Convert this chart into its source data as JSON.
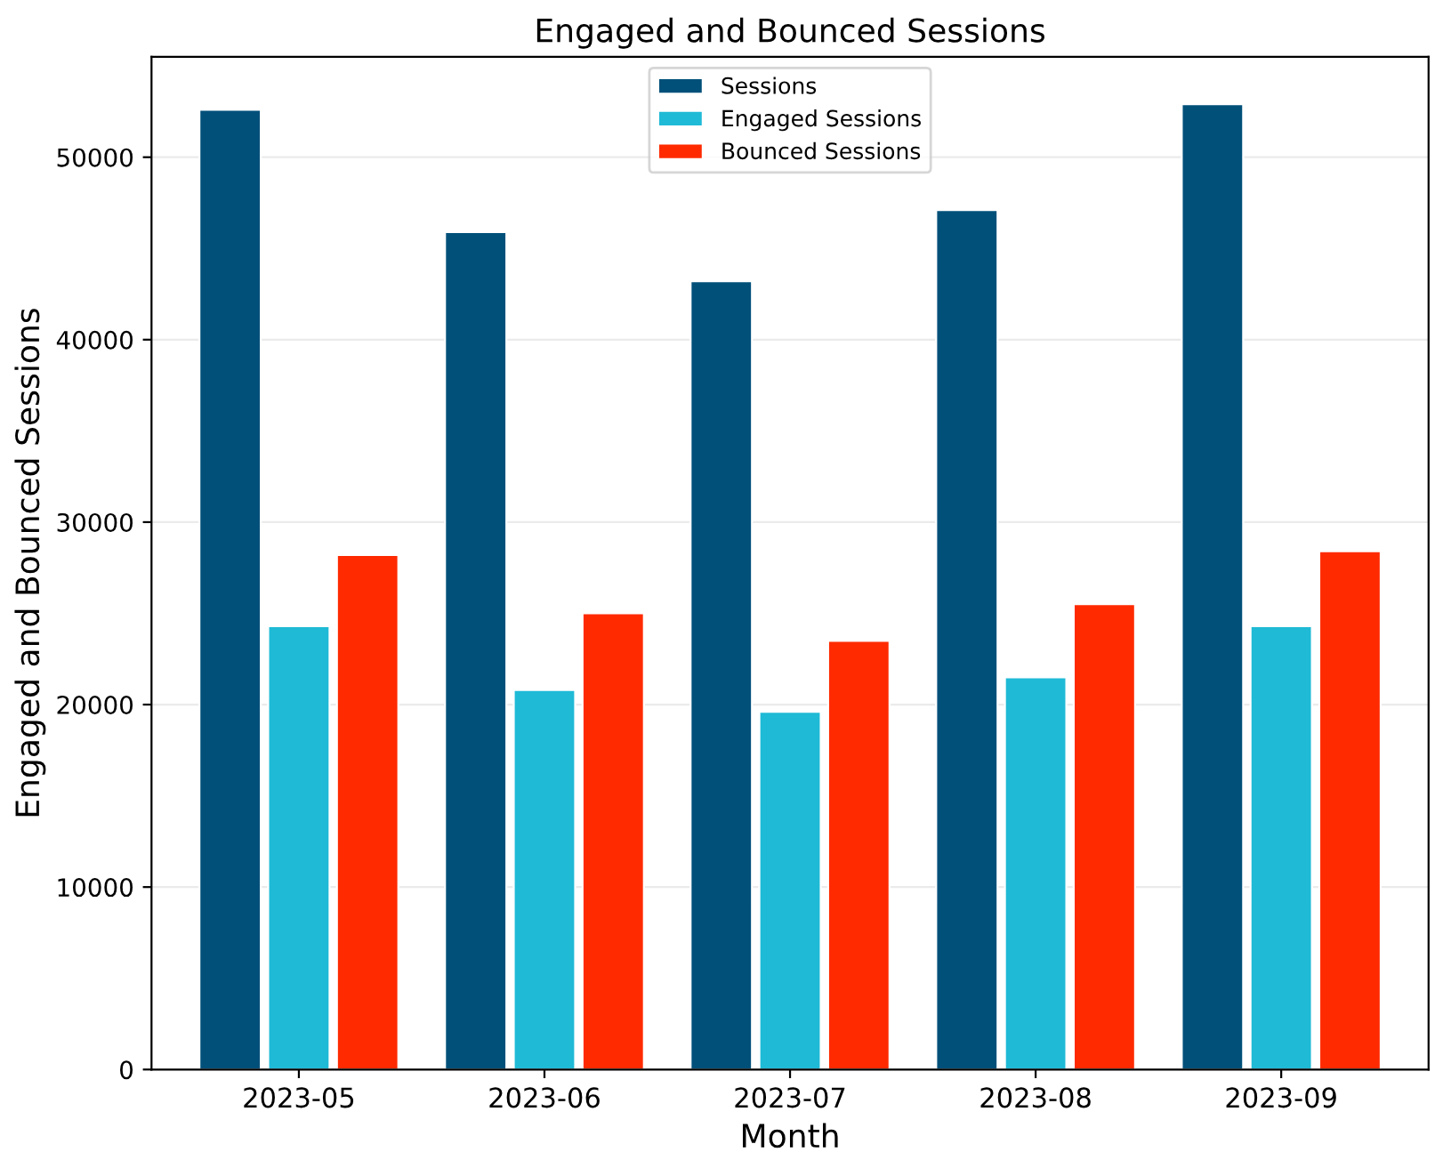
{
  "chart_data": {
    "type": "bar",
    "title": "Engaged and Bounced Sessions",
    "xlabel": "Month",
    "ylabel": "Engaged and Bounced Sessions",
    "categories": [
      "2023-05",
      "2023-06",
      "2023-07",
      "2023-08",
      "2023-09"
    ],
    "series": [
      {
        "name": "Sessions",
        "color": "#00507a",
        "values": [
          52600,
          45900,
          43200,
          47100,
          52900
        ]
      },
      {
        "name": "Engaged Sessions",
        "color": "#1fbad6",
        "values": [
          24300,
          20800,
          19600,
          21500,
          24300
        ]
      },
      {
        "name": "Bounced Sessions",
        "color": "#ff2a00",
        "values": [
          28200,
          25000,
          23500,
          25500,
          28400
        ]
      }
    ],
    "ylim": [
      0,
      55500
    ],
    "yticks": [
      0,
      10000,
      20000,
      30000,
      40000,
      50000
    ],
    "grid": "y",
    "legend": "top"
  }
}
